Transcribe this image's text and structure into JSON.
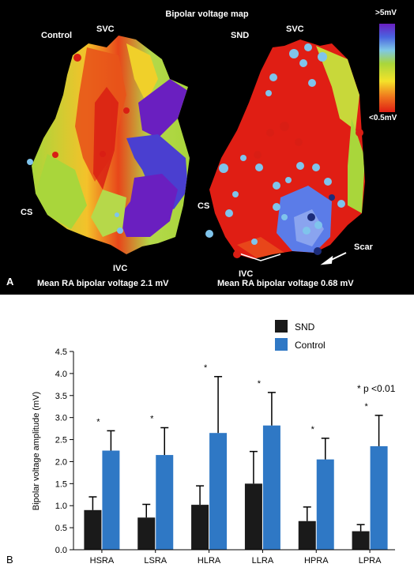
{
  "panel_a": {
    "letter": "A",
    "title": "Bipolar voltage map",
    "left_map": {
      "group_label": "Control",
      "svc_label": "SVC",
      "cs_label": "CS",
      "ivc_label": "IVC",
      "caption": "Mean RA bipolar voltage 2.1 mV"
    },
    "right_map": {
      "group_label": "SND",
      "svc_label": "SVC",
      "cs_label": "CS",
      "ivc_label": "IVC",
      "scar_label": "Scar",
      "caption": "Mean RA bipolar voltage 0.68 mV"
    },
    "scale": {
      "max_label": ">5mV",
      "min_label": "<0.5mV"
    },
    "colors": {
      "red": "#e01e14",
      "yellow": "#f4e22a",
      "green": "#a9d63b",
      "blue": "#5b7ce8",
      "purple": "#6a1fc0",
      "point": "#7fc4ec"
    }
  },
  "panel_b": {
    "letter": "B",
    "significance_note": "* p <0.01",
    "colors": {
      "SND": "#1a1a1a",
      "Control": "#2f78c5"
    }
  },
  "chart_data": {
    "type": "bar",
    "categories": [
      "HSRA",
      "LSRA",
      "HLRA",
      "LLRA",
      "HPRA",
      "LPRA"
    ],
    "series": [
      {
        "name": "SND",
        "values": [
          0.9,
          0.73,
          1.02,
          1.5,
          0.65,
          0.42
        ],
        "errors": [
          0.3,
          0.3,
          0.43,
          0.73,
          0.32,
          0.15
        ]
      },
      {
        "name": "Control",
        "values": [
          2.25,
          2.15,
          2.65,
          2.82,
          2.05,
          2.35
        ],
        "errors": [
          0.45,
          0.62,
          1.28,
          0.75,
          0.48,
          0.7
        ]
      }
    ],
    "significance_marks": [
      "*",
      "*",
      "*",
      "*",
      "*",
      "*"
    ],
    "ylabel": "Bipolar voltage amplitude (mV)",
    "xlabel": "",
    "ylim": [
      0,
      4.5
    ],
    "yticks": [
      "0.0",
      "0.5",
      "1.0",
      "1.5",
      "2.0",
      "2.5",
      "3.0",
      "3.5",
      "4.0",
      "4.5"
    ],
    "legend": "top-right",
    "grid": false
  }
}
